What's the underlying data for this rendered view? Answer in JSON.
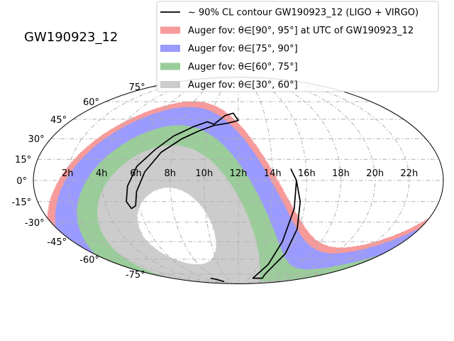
{
  "chart_data": {
    "type": "area",
    "projection": "mollweide",
    "title": "GW190923_12",
    "xlabel": "",
    "ylabel": "",
    "grid": true,
    "legend_placement": "top-right",
    "ra_ticks": [
      "2h",
      "4h",
      "6h",
      "8h",
      "10h",
      "12h",
      "14h",
      "16h",
      "18h",
      "20h",
      "22h"
    ],
    "dec_ticks": [
      {
        "label": "-75°",
        "value": -75
      },
      {
        "label": "-60°",
        "value": -60
      },
      {
        "label": "-45°",
        "value": -45
      },
      {
        "label": "-30°",
        "value": -30
      },
      {
        "label": "-15°",
        "value": -15
      },
      {
        "label": "0°",
        "value": 0
      },
      {
        "label": "15°",
        "value": 15
      },
      {
        "label": "30°",
        "value": 30
      },
      {
        "label": "45°",
        "value": 45
      },
      {
        "label": "60°",
        "value": 60
      },
      {
        "label": "75°",
        "value": 75
      }
    ],
    "legend": [
      {
        "label": "~ 90% CL contour GW190923_12 (LIGO + VIRGO)",
        "kind": "line",
        "color": "#000000"
      },
      {
        "label": "Auger fov: θ∈[90°, 95°] at UTC of GW190923_12",
        "kind": "patch",
        "color": "#f79a9a"
      },
      {
        "label": "Auger fov: θ∈[75°, 90°]",
        "kind": "patch",
        "color": "#9a9aff"
      },
      {
        "label": "Auger fov: θ∈[60°, 75°]",
        "kind": "patch",
        "color": "#9acd9a"
      },
      {
        "label": "Auger fov: θ∈[30°, 60°]",
        "kind": "patch",
        "color": "#cccccc"
      }
    ],
    "series": [
      {
        "name": "Auger fov: θ∈[90°, 95°] at UTC of GW190923_12",
        "zenith_range": [
          90,
          95
        ],
        "color": "#f79a9a"
      },
      {
        "name": "Auger fov: θ∈[75°, 90°]",
        "zenith_range": [
          75,
          90
        ],
        "color": "#9a9aff"
      },
      {
        "name": "Auger fov: θ∈[60°, 75°]",
        "zenith_range": [
          60,
          75
        ],
        "color": "#9acd9a"
      },
      {
        "name": "Auger fov: θ∈[30°, 60°]",
        "zenith_range": [
          30,
          60
        ],
        "color": "#cccccc"
      },
      {
        "name": "~ 90% CL contour GW190923_12 (LIGO + VIRGO)",
        "color": "#000000",
        "contours": [
          [
            [
              10.3,
              41
            ],
            [
              11.0,
              48
            ],
            [
              11.6,
              50
            ],
            [
              12.0,
              44
            ],
            [
              11.3,
              42
            ],
            [
              10.3,
              40
            ],
            [
              9.4,
              36
            ],
            [
              8.4,
              30
            ],
            [
              7.3,
              20
            ],
            [
              6.5,
              6
            ],
            [
              6.0,
              -8
            ],
            [
              5.8,
              -18
            ],
            [
              5.5,
              -20
            ],
            [
              5.3,
              -15
            ],
            [
              5.5,
              -4
            ],
            [
              6.0,
              10
            ],
            [
              6.9,
              22
            ],
            [
              7.8,
              32
            ],
            [
              8.9,
              39
            ],
            [
              9.8,
              43
            ],
            [
              10.3,
              41
            ]
          ],
          [
            [
              15.1,
              8
            ],
            [
              15.4,
              0
            ],
            [
              15.4,
              -20
            ],
            [
              15.2,
              -45
            ],
            [
              15.0,
              -65
            ],
            [
              14.6,
              -80
            ],
            [
              15.6,
              -80
            ],
            [
              16.3,
              -80
            ],
            [
              15.7,
              -75
            ],
            [
              15.9,
              -55
            ],
            [
              15.9,
              -35
            ],
            [
              15.7,
              -15
            ],
            [
              15.4,
              0
            ],
            [
              15.1,
              8
            ]
          ],
          [
            [
              7.0,
              -80
            ],
            [
              7.6,
              -82
            ],
            [
              8.0,
              -85
            ]
          ]
        ]
      }
    ]
  }
}
